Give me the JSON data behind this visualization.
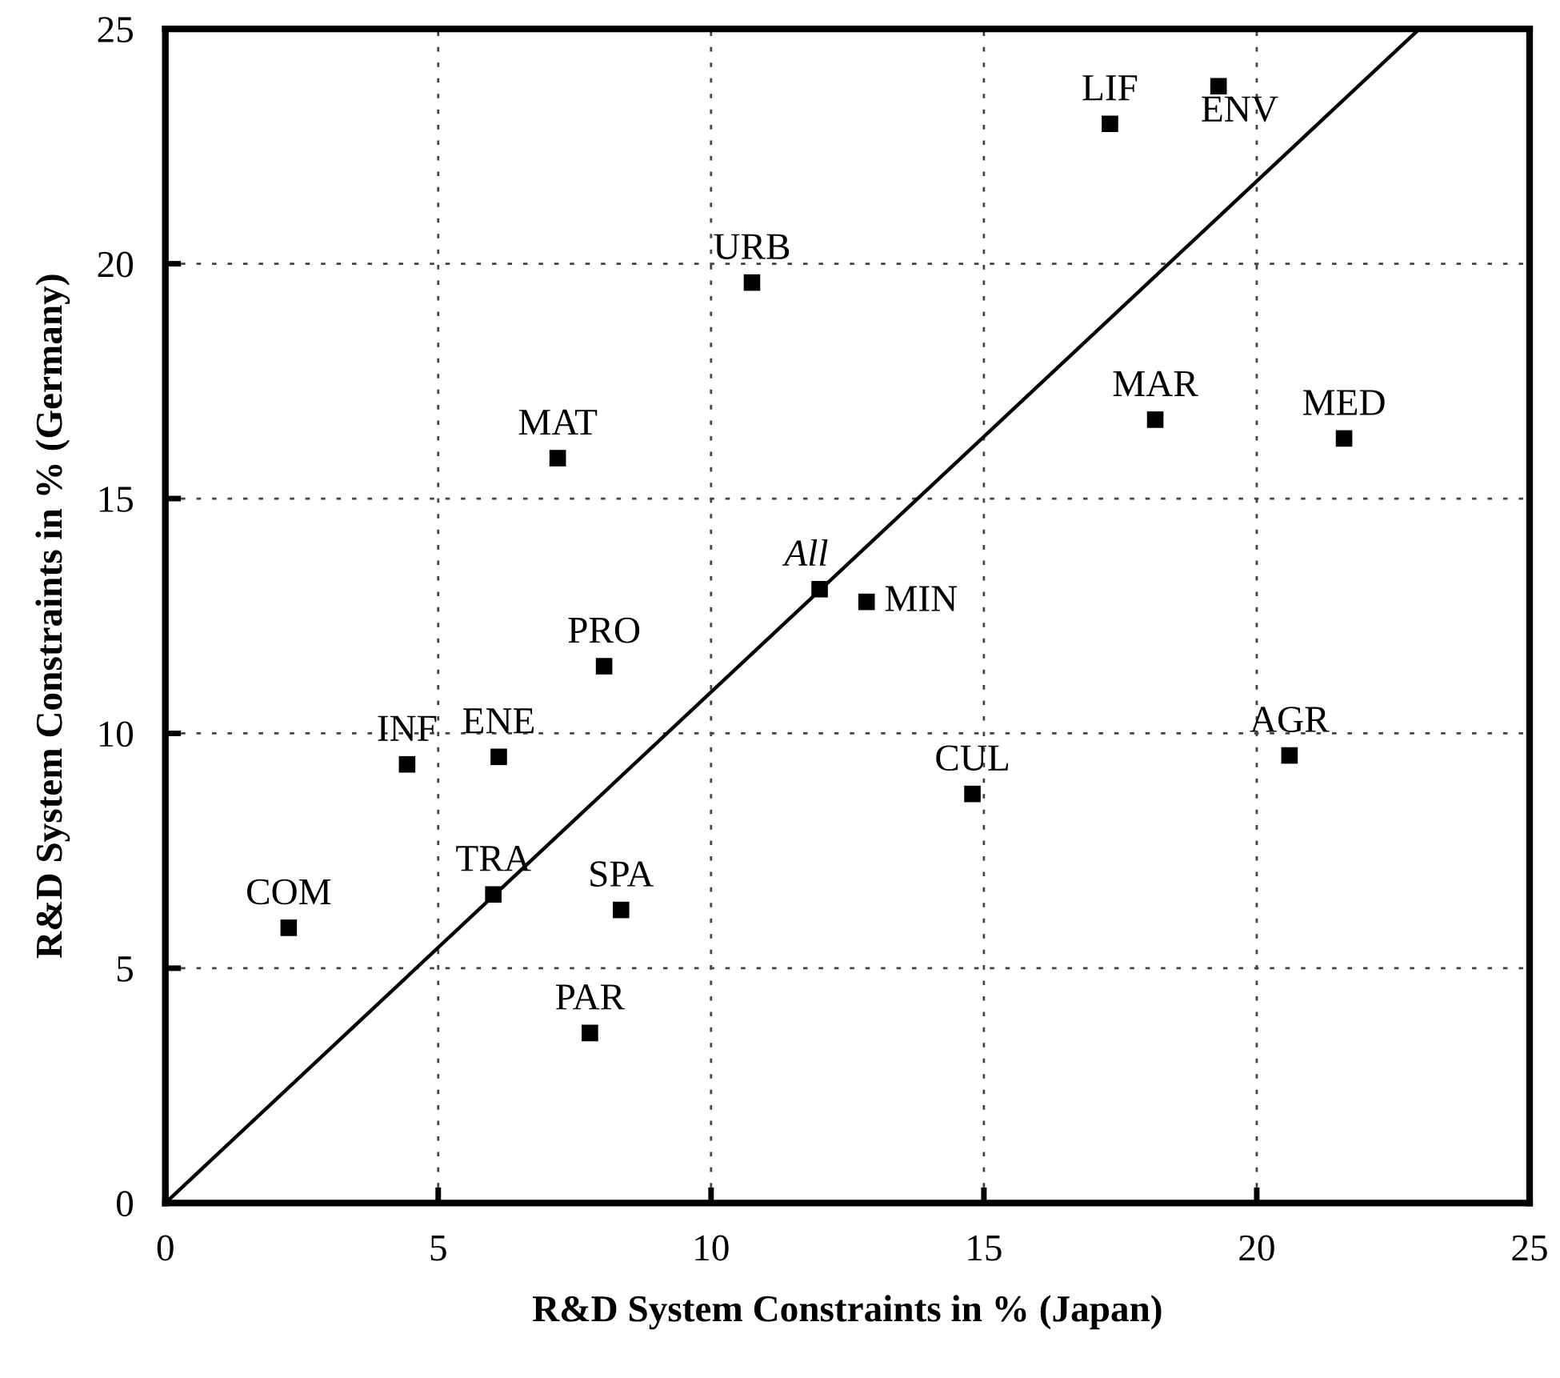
{
  "chart_data": {
    "type": "scatter",
    "xlabel": "R&D System Constraints in % (Japan)",
    "ylabel": "R&D System Constraints in % (Germany)",
    "xlim": [
      0,
      25
    ],
    "ylim": [
      0,
      25
    ],
    "xticks": [
      0,
      5,
      10,
      15,
      20,
      25
    ],
    "yticks": [
      0,
      5,
      10,
      15,
      20,
      25
    ],
    "grid": true,
    "marker": "square",
    "series": [
      {
        "color": "#000000",
        "x": [
          2.26,
          4.43,
          6.11,
          8.04,
          6.01,
          8.35,
          7.78,
          11.99,
          12.85,
          14.79,
          20.6,
          21.6,
          18.14,
          17.31,
          19.3,
          10.75,
          7.19
        ],
        "values": [
          5.86,
          9.34,
          9.5,
          11.43,
          6.57,
          6.24,
          3.62,
          13.07,
          12.8,
          8.71,
          9.53,
          16.28,
          16.68,
          22.98,
          23.78,
          19.6,
          15.86
        ]
      },
      {
        "type": "line",
        "color": "#000000",
        "marker": "none",
        "x": [
          0,
          22.98
        ],
        "values": [
          0,
          25
        ]
      }
    ],
    "annotations": [
      {
        "text": "COM",
        "x": 2.26,
        "y": 5.86
      },
      {
        "text": "INF",
        "x": 4.43,
        "y": 9.34
      },
      {
        "text": "ENE",
        "x": 6.11,
        "y": 9.5
      },
      {
        "text": "PRO",
        "x": 8.04,
        "y": 11.43
      },
      {
        "text": "TRA",
        "x": 6.01,
        "y": 6.57
      },
      {
        "text": "SPA",
        "x": 8.35,
        "y": 6.24
      },
      {
        "text": "PAR",
        "x": 7.78,
        "y": 3.62
      },
      {
        "text": "All",
        "x": 11.99,
        "y": 13.07
      },
      {
        "text": "MIN",
        "x": 12.85,
        "y": 12.8
      },
      {
        "text": "CUL",
        "x": 14.79,
        "y": 8.71
      },
      {
        "text": "AGR",
        "x": 20.6,
        "y": 9.53
      },
      {
        "text": "MED",
        "x": 21.6,
        "y": 16.28
      },
      {
        "text": "MAR",
        "x": 18.14,
        "y": 16.68
      },
      {
        "text": "LIF",
        "x": 17.31,
        "y": 22.98
      },
      {
        "text": "ENV",
        "x": 19.3,
        "y": 23.78
      },
      {
        "text": "URB",
        "x": 10.75,
        "y": 19.6
      },
      {
        "text": "MAT",
        "x": 7.19,
        "y": 15.86
      }
    ]
  }
}
